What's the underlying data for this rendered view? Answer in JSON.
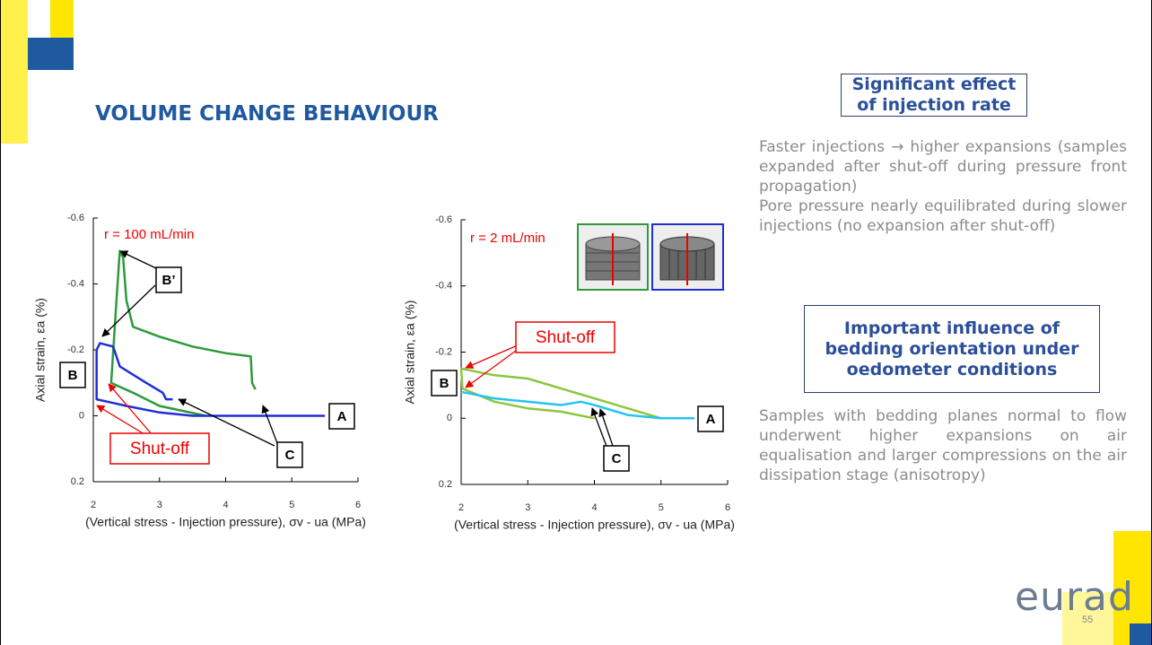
{
  "title": "VOLUME CHANGE BEHAVIOUR",
  "boxes": [
    "Significant effect of injection rate",
    "Important influence of bedding orientation under oedometer conditions"
  ],
  "paragraphs": [
    "Faster injections → higher expansions (samples expanded after shut-off during pressure front propagation)",
    "Pore pressure nearly equilibrated during slower injections (no expansion after shut-off)",
    "Samples with bedding planes normal to flow underwent higher expansions on air equalisation and larger compressions on the air dissipation stage (anisotropy)"
  ],
  "logo": "eurad",
  "page_number": "55",
  "chart_data": [
    {
      "type": "line",
      "x_label": "(Vertical stress - Injection pressure), σv - ua (MPa)",
      "y_label": "Axial strain, εa (%)",
      "xlim": [
        2,
        6
      ],
      "xticks": [
        2,
        3,
        4,
        5,
        6
      ],
      "ylim": [
        -0.6,
        0.2
      ],
      "yticks": [
        -0.6,
        -0.4,
        -0.2,
        0,
        0.2
      ],
      "y_inverted": true,
      "annotations": [
        "r = 100 mL/min",
        "B’",
        "B",
        "A",
        "C",
        "Shut-off"
      ],
      "series": [
        {
          "color": "#2e9a3a",
          "x": [
            3.7,
            3.0,
            2.6,
            2.27,
            2.35,
            2.4,
            2.45,
            2.5,
            2.6,
            3.0,
            3.5,
            4.0,
            4.38,
            4.4,
            4.45
          ],
          "values": [
            0.0,
            -0.03,
            -0.07,
            -0.1,
            -0.35,
            -0.5,
            -0.48,
            -0.35,
            -0.27,
            -0.24,
            -0.21,
            -0.19,
            -0.18,
            -0.1,
            -0.08
          ]
        },
        {
          "color": "#1f2fd6",
          "x": [
            5.5,
            4.5,
            3.5,
            3.0,
            2.5,
            2.05,
            2.05,
            2.1,
            2.3,
            2.4,
            2.8,
            3.05,
            3.1,
            3.2
          ],
          "values": [
            0.0,
            0.0,
            0.0,
            -0.01,
            -0.03,
            -0.05,
            -0.2,
            -0.22,
            -0.21,
            -0.15,
            -0.1,
            -0.07,
            -0.05,
            -0.05
          ]
        }
      ]
    },
    {
      "type": "line",
      "x_label": "(Vertical stress - Injection pressure), σv - ua (MPa)",
      "y_label": "Axial strain, εa (%)",
      "xlim": [
        2,
        6
      ],
      "xticks": [
        2,
        3,
        4,
        5,
        6
      ],
      "ylim": [
        -0.6,
        0.2
      ],
      "yticks": [
        -0.6,
        -0.4,
        -0.2,
        0,
        0.2
      ],
      "y_inverted": true,
      "annotations": [
        "r = 2 mL/min",
        "Shut-off",
        "B",
        "A",
        "C"
      ],
      "series": [
        {
          "color": "#8cc63f",
          "x": [
            5.5,
            5.0,
            4.5,
            4.0,
            3.5,
            3.0,
            2.5,
            2.0,
            2.02,
            2.5,
            3.0,
            3.5,
            4.0
          ],
          "values": [
            0.0,
            0.0,
            -0.03,
            -0.06,
            -0.09,
            -0.12,
            -0.13,
            -0.15,
            -0.09,
            -0.05,
            -0.03,
            -0.02,
            0.0
          ]
        },
        {
          "color": "#27c4f0",
          "x": [
            2.0,
            2.5,
            3.0,
            3.5,
            3.8,
            4.0,
            4.5,
            5.0,
            5.5
          ],
          "values": [
            -0.08,
            -0.06,
            -0.05,
            -0.04,
            -0.05,
            -0.04,
            -0.01,
            0.0,
            0.0
          ]
        }
      ]
    }
  ]
}
